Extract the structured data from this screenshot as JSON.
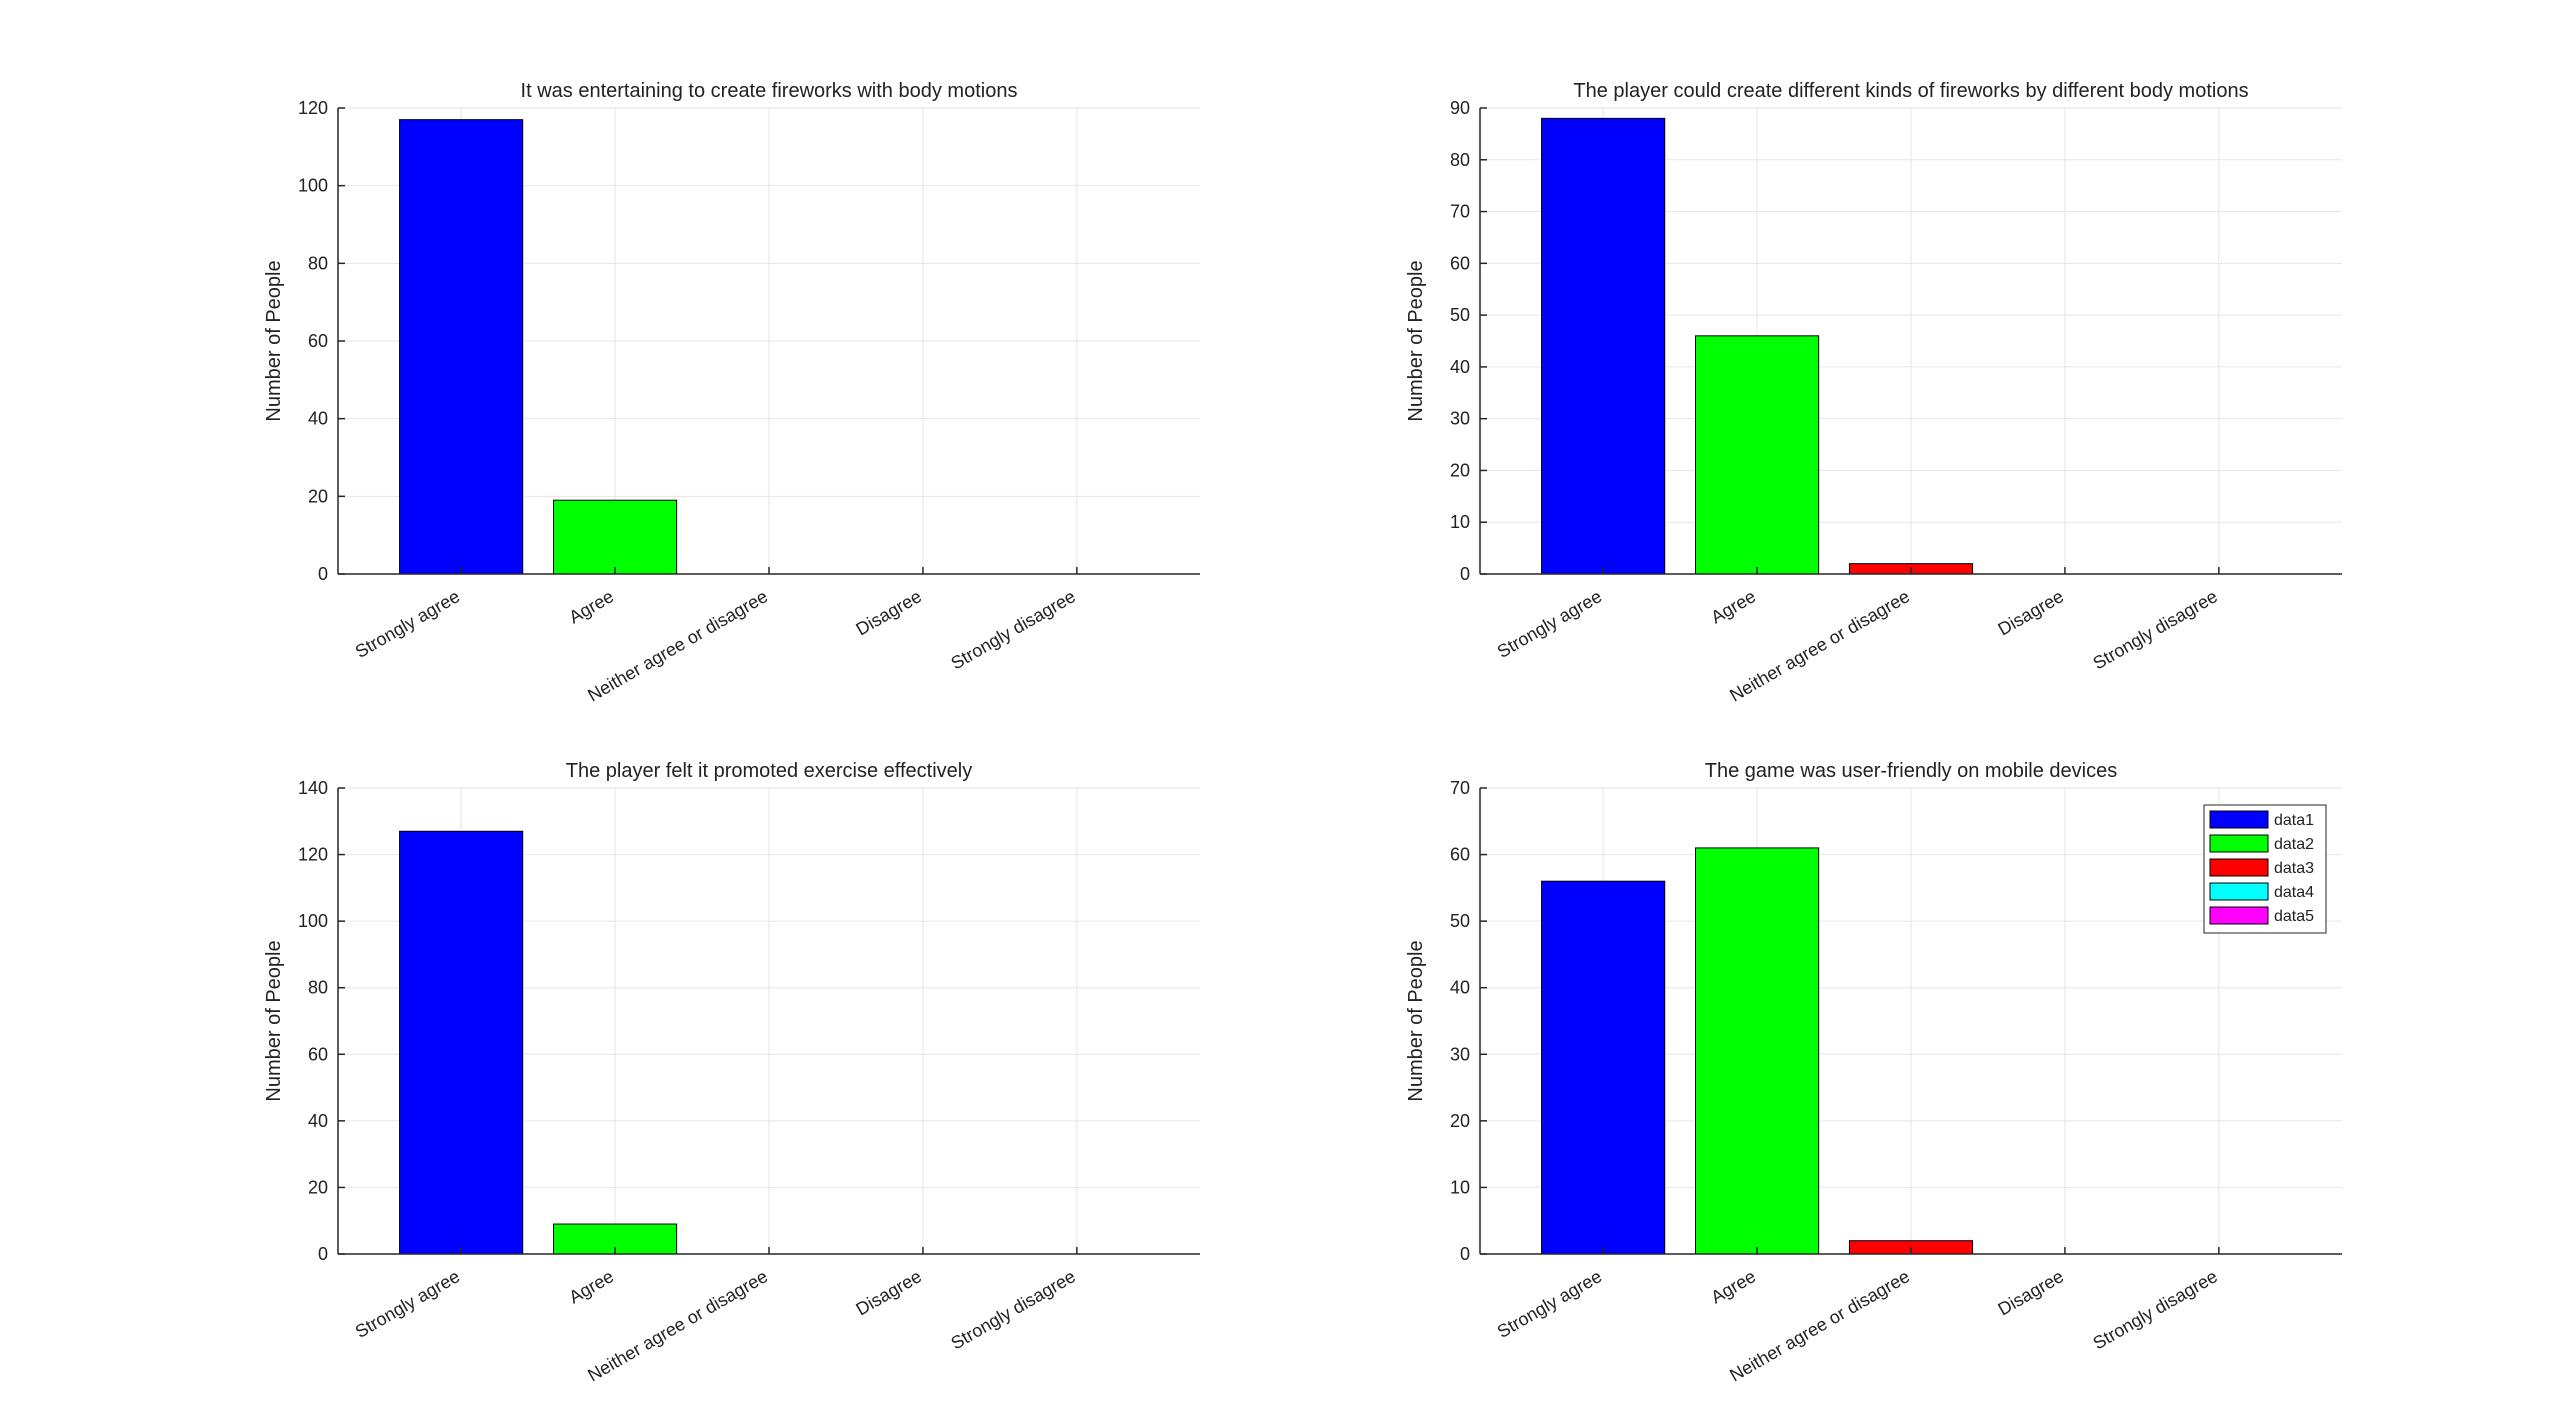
{
  "chart_data": [
    {
      "type": "bar",
      "title": "It was entertaining to create fireworks with body motions",
      "xlabel": "",
      "ylabel": "Number of People",
      "categories": [
        "Strongly agree",
        "Agree",
        "Neither agree or disagree",
        "Disagree",
        "Strongly disagree"
      ],
      "values": [
        117,
        19,
        0,
        0,
        0
      ],
      "yticks": [
        0,
        20,
        40,
        60,
        80,
        100,
        120
      ],
      "ylim": [
        0,
        120
      ],
      "grid": true
    },
    {
      "type": "bar",
      "title": "The player could create different kinds of fireworks by different body motions",
      "xlabel": "",
      "ylabel": "Number of People",
      "categories": [
        "Strongly agree",
        "Agree",
        "Neither agree or disagree",
        "Disagree",
        "Strongly disagree"
      ],
      "values": [
        88,
        46,
        2,
        0,
        0
      ],
      "yticks": [
        0,
        10,
        20,
        30,
        40,
        50,
        60,
        70,
        80,
        90
      ],
      "ylim": [
        0,
        90
      ],
      "grid": true
    },
    {
      "type": "bar",
      "title": "The player felt it promoted exercise effectively",
      "xlabel": "",
      "ylabel": "Number of People",
      "categories": [
        "Strongly agree",
        "Agree",
        "Neither agree or disagree",
        "Disagree",
        "Strongly disagree"
      ],
      "values": [
        127,
        9,
        0,
        0,
        0
      ],
      "yticks": [
        0,
        20,
        40,
        60,
        80,
        100,
        120,
        140
      ],
      "ylim": [
        0,
        140
      ],
      "grid": true
    },
    {
      "type": "bar",
      "title": "The game was user-friendly on mobile devices",
      "xlabel": "",
      "ylabel": "Number of People",
      "categories": [
        "Strongly agree",
        "Agree",
        "Neither agree or disagree",
        "Disagree",
        "Strongly disagree"
      ],
      "values": [
        56,
        61,
        2,
        0,
        0
      ],
      "yticks": [
        0,
        10,
        20,
        30,
        40,
        50,
        60,
        70
      ],
      "ylim": [
        0,
        70
      ],
      "grid": true,
      "legend": {
        "placement": "top-right",
        "entries": [
          "data1",
          "data2",
          "data3",
          "data4",
          "data5"
        ]
      }
    }
  ],
  "colors": [
    "#0000ff",
    "#00ff00",
    "#ff0000",
    "#00ffff",
    "#ff00ff"
  ]
}
